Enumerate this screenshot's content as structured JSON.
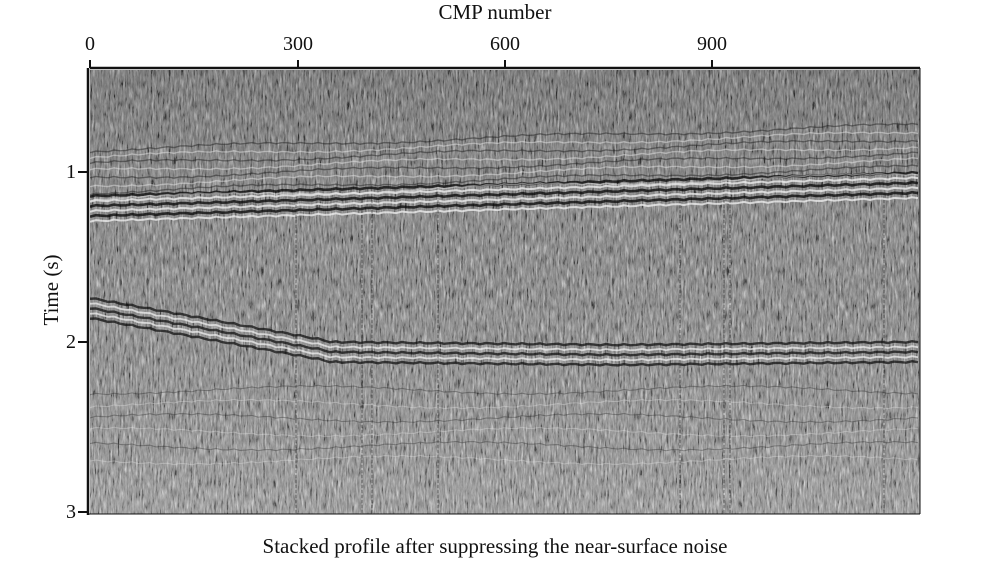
{
  "figure": {
    "x_axis_title": "CMP number",
    "y_axis_title": "Time (s)",
    "caption": "Stacked profile after suppressing the near-surface noise",
    "x_ticks": [
      "0",
      "300",
      "600",
      "900"
    ],
    "y_ticks": [
      "1",
      "2",
      "3"
    ]
  },
  "chart_data": {
    "type": "heatmap",
    "title": "",
    "xlabel": "CMP number",
    "ylabel": "Time (s)",
    "xlim": [
      0,
      1200
    ],
    "ylim": [
      0.35,
      3
    ],
    "x_tick_values": [
      0,
      300,
      600,
      900
    ],
    "y_tick_values": [
      1,
      2,
      3
    ],
    "colormap": "grayscale seismic amplitude",
    "grid": false
  },
  "colors": {
    "background": "#ffffff",
    "axis": "#111111",
    "trace_mid": "#808080"
  }
}
